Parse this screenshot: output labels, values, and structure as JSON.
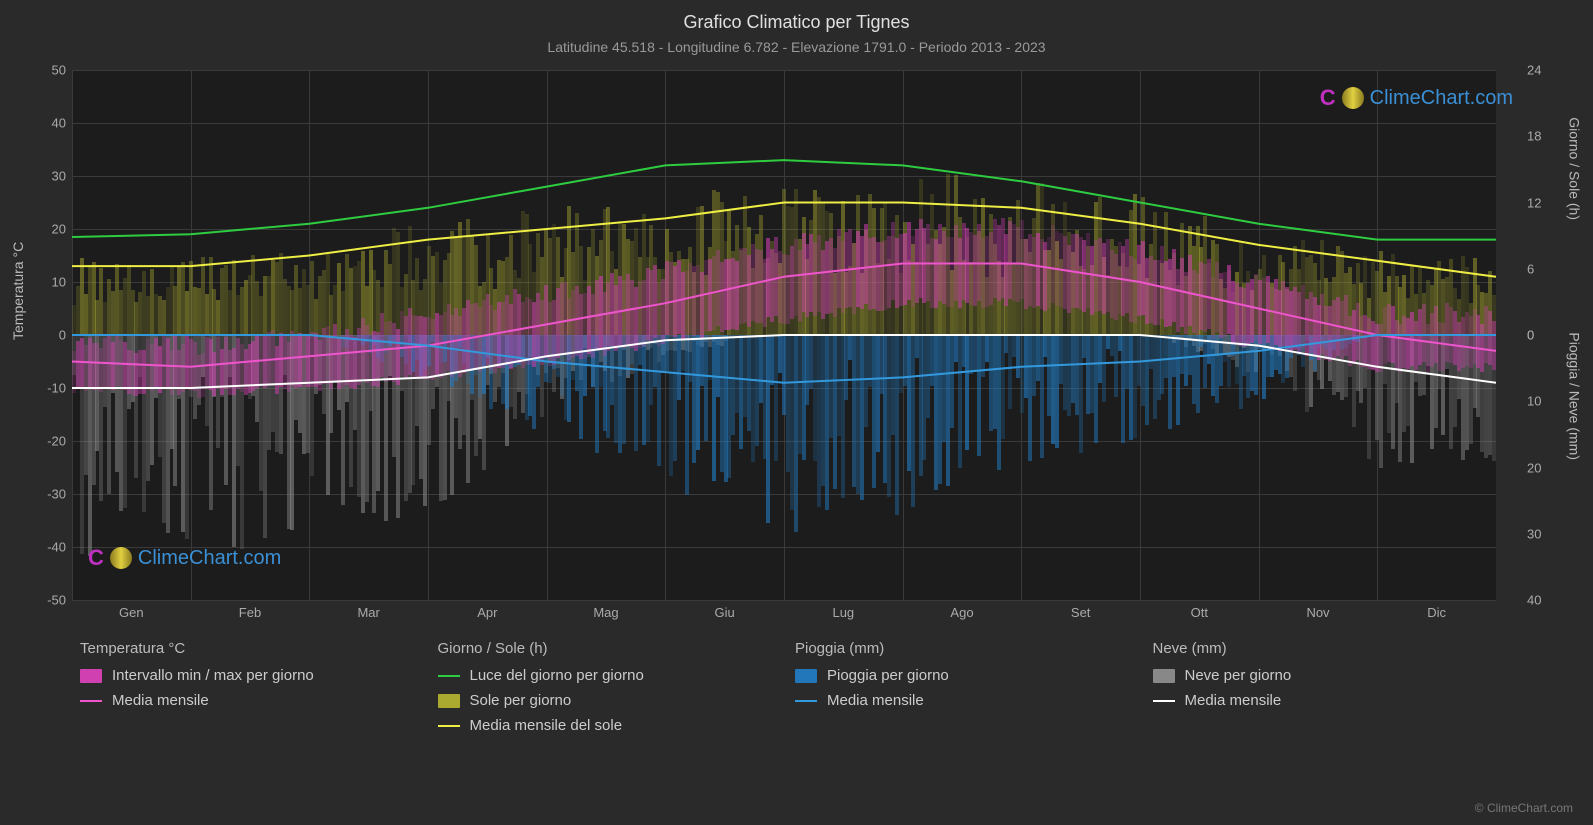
{
  "title": "Grafico Climatico per Tignes",
  "subtitle": "Latitudine 45.518 - Longitudine 6.782 - Elevazione 1791.0 - Periodo 2013 - 2023",
  "watermark_text": "ClimeChart.com",
  "copyright": "© ClimeChart.com",
  "chart": {
    "background_color": "#1c1c1c",
    "grid_color": "#3a3a3a",
    "text_color": "#aaaaaa",
    "months": [
      "Gen",
      "Feb",
      "Mar",
      "Apr",
      "Mag",
      "Giu",
      "Lug",
      "Ago",
      "Set",
      "Ott",
      "Nov",
      "Dic"
    ],
    "y_left": {
      "title": "Temperatura °C",
      "min": -50,
      "max": 50,
      "ticks": [
        -50,
        -40,
        -30,
        -20,
        -10,
        0,
        10,
        20,
        30,
        40,
        50
      ]
    },
    "y_right_top": {
      "title": "Giorno / Sole (h)",
      "min": 0,
      "max": 24,
      "ticks": [
        0,
        6,
        12,
        18,
        24
      ]
    },
    "y_right_bot": {
      "title": "Pioggia / Neve (mm)",
      "min": 0,
      "max": 40,
      "ticks": [
        0,
        10,
        20,
        30,
        40
      ]
    },
    "series": {
      "daylight": {
        "color": "#2ecc40",
        "width": 2,
        "values": [
          18.5,
          19,
          21,
          24,
          28,
          32,
          33,
          32,
          29,
          25,
          21,
          18,
          18
        ]
      },
      "sun_mean": {
        "color": "#eeee44",
        "width": 2,
        "values": [
          13,
          13,
          15,
          18,
          20,
          22,
          25,
          25,
          24,
          21,
          17,
          14,
          11
        ]
      },
      "temp_mean": {
        "color": "#ee55cc",
        "width": 2,
        "values": [
          -5,
          -6,
          -4,
          -2,
          2,
          6,
          11,
          13.5,
          13.5,
          10,
          5,
          0,
          -3
        ]
      },
      "rain_mean": {
        "color": "#3399dd",
        "width": 2,
        "values": [
          0,
          0,
          0,
          -2,
          -5,
          -7,
          -9,
          -8,
          -6,
          -5,
          -3,
          0,
          0
        ]
      },
      "snow_mean": {
        "color": "#ffffff",
        "width": 2,
        "values": [
          -10,
          -10,
          -9,
          -8,
          -4,
          -1,
          0,
          0,
          0,
          0,
          -2,
          -6,
          -9
        ]
      },
      "temp_range_band": {
        "color": "#d040b0",
        "opacity": 0.6,
        "low": [
          -10,
          -11,
          -10,
          -8,
          -5,
          -1,
          3,
          6,
          6,
          3,
          -2,
          -6,
          -9
        ],
        "high": [
          -1,
          -2,
          0,
          4,
          8,
          12,
          17,
          20,
          20,
          16,
          10,
          4,
          1
        ]
      },
      "sun_daily_band": {
        "color": "#aaaa30",
        "opacity": 0.5,
        "low": [
          0,
          0,
          0,
          0,
          0,
          0,
          0,
          0,
          0,
          0,
          0,
          0,
          0
        ],
        "high": [
          14,
          14,
          16,
          20,
          22,
          24,
          27,
          28,
          27,
          24,
          18,
          15,
          12
        ]
      },
      "rain_daily_bars": {
        "color": "#2277bb",
        "opacity": 0.7,
        "max_mm": 25
      },
      "snow_daily_bars": {
        "color": "#888888",
        "opacity": 0.6,
        "max_mm": 40
      }
    }
  },
  "legend": {
    "cols": [
      {
        "title": "Temperatura °C",
        "items": [
          {
            "type": "swatch",
            "color": "#d040b0",
            "label": "Intervallo min / max per giorno"
          },
          {
            "type": "line",
            "color": "#ee55cc",
            "label": "Media mensile"
          }
        ]
      },
      {
        "title": "Giorno / Sole (h)",
        "items": [
          {
            "type": "line",
            "color": "#2ecc40",
            "label": "Luce del giorno per giorno"
          },
          {
            "type": "swatch",
            "color": "#aaaa30",
            "label": "Sole per giorno"
          },
          {
            "type": "line",
            "color": "#eeee44",
            "label": "Media mensile del sole"
          }
        ]
      },
      {
        "title": "Pioggia (mm)",
        "items": [
          {
            "type": "swatch",
            "color": "#2277bb",
            "label": "Pioggia per giorno"
          },
          {
            "type": "line",
            "color": "#3399dd",
            "label": "Media mensile"
          }
        ]
      },
      {
        "title": "Neve (mm)",
        "items": [
          {
            "type": "swatch",
            "color": "#888888",
            "label": "Neve per giorno"
          },
          {
            "type": "line",
            "color": "#ffffff",
            "label": "Media mensile"
          }
        ]
      }
    ]
  }
}
